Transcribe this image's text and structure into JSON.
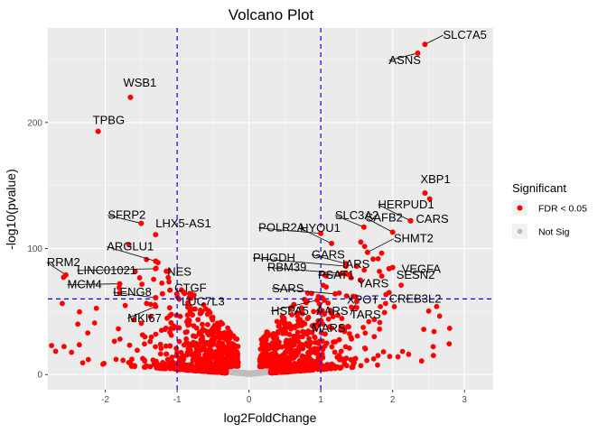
{
  "chart_data": {
    "type": "scatter",
    "title": "Volcano Plot",
    "xlabel": "log2FoldChange",
    "ylabel": "-log10(pvalue)",
    "xlim": [
      -2.8,
      3.4
    ],
    "ylim": [
      -12,
      275
    ],
    "x_ticks": [
      -2,
      -1,
      0,
      1,
      2,
      3
    ],
    "y_ticks": [
      0,
      100,
      200
    ],
    "grid": true,
    "background": "#ebebeb",
    "thresholds": {
      "x": [
        -1,
        1
      ],
      "y": 60,
      "color": "#0000ff",
      "style": "dashed"
    },
    "legend": {
      "title": "Significant",
      "position": "right",
      "entries": [
        {
          "label": "FDR < 0.05",
          "color": "#ff0000"
        },
        {
          "label": "Not Sig",
          "color": "#bebebe"
        }
      ]
    },
    "colors": {
      "significant": "#ff0000",
      "not_significant": "#bebebe"
    },
    "labeled_genes": [
      {
        "gene": "SLC7A5",
        "x": 2.45,
        "y": 262
      },
      {
        "gene": "ASNS",
        "x": 2.35,
        "y": 255
      },
      {
        "gene": "WSB1",
        "x": -1.65,
        "y": 220
      },
      {
        "gene": "TPBG",
        "x": -2.1,
        "y": 193
      },
      {
        "gene": "XBP1",
        "x": 2.45,
        "y": 144
      },
      {
        "gene": "HERPUD1",
        "x": 2.25,
        "y": 122
      },
      {
        "gene": "CARS",
        "x": 2.25,
        "y": 122
      },
      {
        "gene": "SFRP2",
        "x": -1.5,
        "y": 120
      },
      {
        "gene": "LHX5-AS1",
        "x": -1.3,
        "y": 111
      },
      {
        "gene": "POLR2A",
        "x": 1.0,
        "y": 112
      },
      {
        "gene": "SLC3A2",
        "x": 1.6,
        "y": 117
      },
      {
        "gene": "HYOU1",
        "x": 1.15,
        "y": 104
      },
      {
        "gene": "SAFB2",
        "x": 2.0,
        "y": 113
      },
      {
        "gene": "SHMT2",
        "x": 1.65,
        "y": 97
      },
      {
        "gene": "RRM2",
        "x": -2.55,
        "y": 79
      },
      {
        "gene": "ARGLU1",
        "x": -1.3,
        "y": 90
      },
      {
        "gene": "GARS",
        "x": 1.35,
        "y": 88
      },
      {
        "gene": "PHGDH",
        "x": 1.35,
        "y": 86
      },
      {
        "gene": "IARS",
        "x": 1.5,
        "y": 86
      },
      {
        "gene": "VEGFA",
        "x": 2.0,
        "y": 85
      },
      {
        "gene": "NES",
        "x": -1.15,
        "y": 82
      },
      {
        "gene": "LINC01021",
        "x": -1.3,
        "y": 84
      },
      {
        "gene": "RBM39",
        "x": 1.35,
        "y": 80
      },
      {
        "gene": "PSAT1",
        "x": 1.4,
        "y": 79
      },
      {
        "gene": "SESN2",
        "x": 1.95,
        "y": 84
      },
      {
        "gene": "MCM4",
        "x": -1.8,
        "y": 72
      },
      {
        "gene": "YARS",
        "x": 1.55,
        "y": 75
      },
      {
        "gene": "CTGF",
        "x": -1.1,
        "y": 67
      },
      {
        "gene": "LENG8",
        "x": -1.3,
        "y": 61
      },
      {
        "gene": "SARS",
        "x": 1.2,
        "y": 64
      },
      {
        "gene": "XPOT",
        "x": 1.45,
        "y": 62
      },
      {
        "gene": "CREB3L2",
        "x": 1.95,
        "y": 65
      },
      {
        "gene": "LUC7L3",
        "x": -0.85,
        "y": 57
      },
      {
        "gene": "MKI67",
        "x": -1.3,
        "y": 54
      },
      {
        "gene": "HSPA5",
        "x": 0.95,
        "y": 59
      },
      {
        "gene": "AARS",
        "x": 1.05,
        "y": 59
      },
      {
        "gene": "TARS",
        "x": 1.5,
        "y": 58
      },
      {
        "gene": "MARS",
        "x": 1.05,
        "y": 48
      }
    ]
  }
}
